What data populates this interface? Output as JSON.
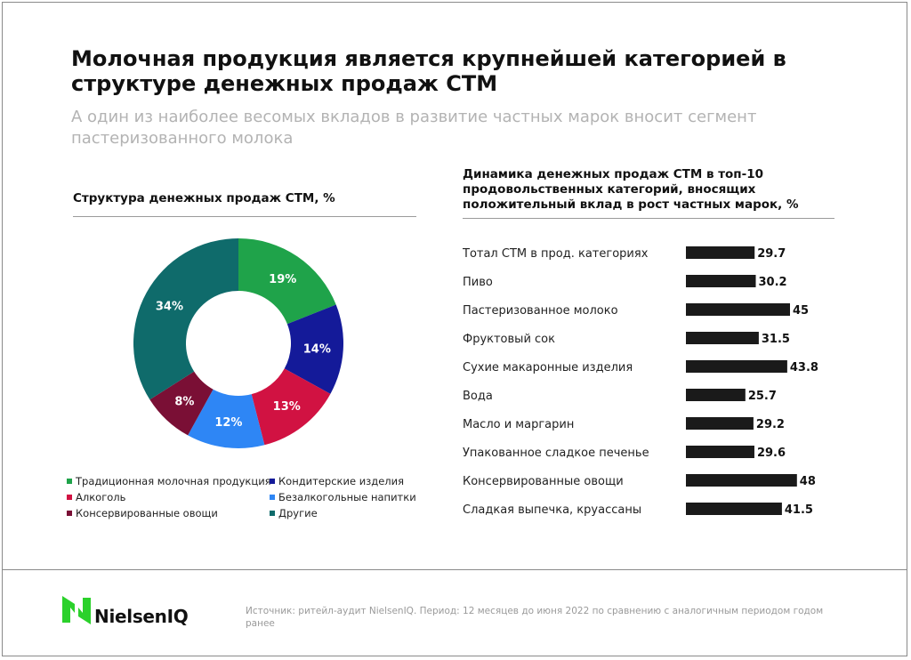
{
  "header": {
    "title": "Молочная продукция является крупнейшей категорией в структуре денежных продаж СТМ",
    "subtitle": "А один из наиболее весомых вкладов в развитие частных марок вносит сегмент пастеризованного молока"
  },
  "brand": {
    "name": "NielsenIQ",
    "accent": "#2bd12b"
  },
  "footer": {
    "source": "Источник: ритейл-аудит NielsenIQ. Период: 12 месяцев до июня 2022 по сравнению с аналогичным периодом годом ранее"
  },
  "chart_data": [
    {
      "type": "pie",
      "title": "Структура денежных продаж СТМ, %",
      "unit": "%",
      "slices": [
        {
          "label": "Традиционная молочная продукция",
          "value": 19,
          "display": "19%",
          "color": "#1fa34a"
        },
        {
          "label": "Кондитерские изделия",
          "value": 14,
          "display": "14%",
          "color": "#141a99"
        },
        {
          "label": "Алкоголь",
          "value": 13,
          "display": "13%",
          "color": "#d11242"
        },
        {
          "label": "Безалкогольные напитки",
          "value": 12,
          "display": "12%",
          "color": "#2e86f5"
        },
        {
          "label": "Консервированные овощи",
          "value": 8,
          "display": "8%",
          "color": "#7a0f35"
        },
        {
          "label": "Другие",
          "value": 34,
          "display": "34%",
          "color": "#0f6b6b"
        }
      ],
      "legend_order": [
        "Традиционная молочная продукция",
        "Кондитерские изделия",
        "Алкоголь",
        "Безалкогольные напитки",
        "Консервированные овощи",
        "Другие"
      ]
    },
    {
      "type": "bar",
      "orientation": "horizontal",
      "title": "Динамика денежных продаж СТМ в топ-10 продовольственных категорий, вносящих положительный вклад в рост частных марок, %",
      "bar_color": "#1a1a1a",
      "categories": [
        "Тотал СТМ в прод. категориях",
        "Пиво",
        "Пастеризованное молоко",
        "Фруктовый сок",
        "Сухие макаронные изделия",
        "Вода",
        "Масло и маргарин",
        "Упакованное сладкое печенье",
        "Консервированные овощи",
        "Сладкая выпечка, круассаны"
      ],
      "values": [
        29.7,
        30.2,
        45,
        31.5,
        43.8,
        25.7,
        29.2,
        29.6,
        48,
        41.5
      ],
      "value_labels": [
        "29.7",
        "30.2",
        "45",
        "31.5",
        "43.8",
        "25.7",
        "29.2",
        "29.6",
        "48",
        "41.5"
      ]
    }
  ]
}
